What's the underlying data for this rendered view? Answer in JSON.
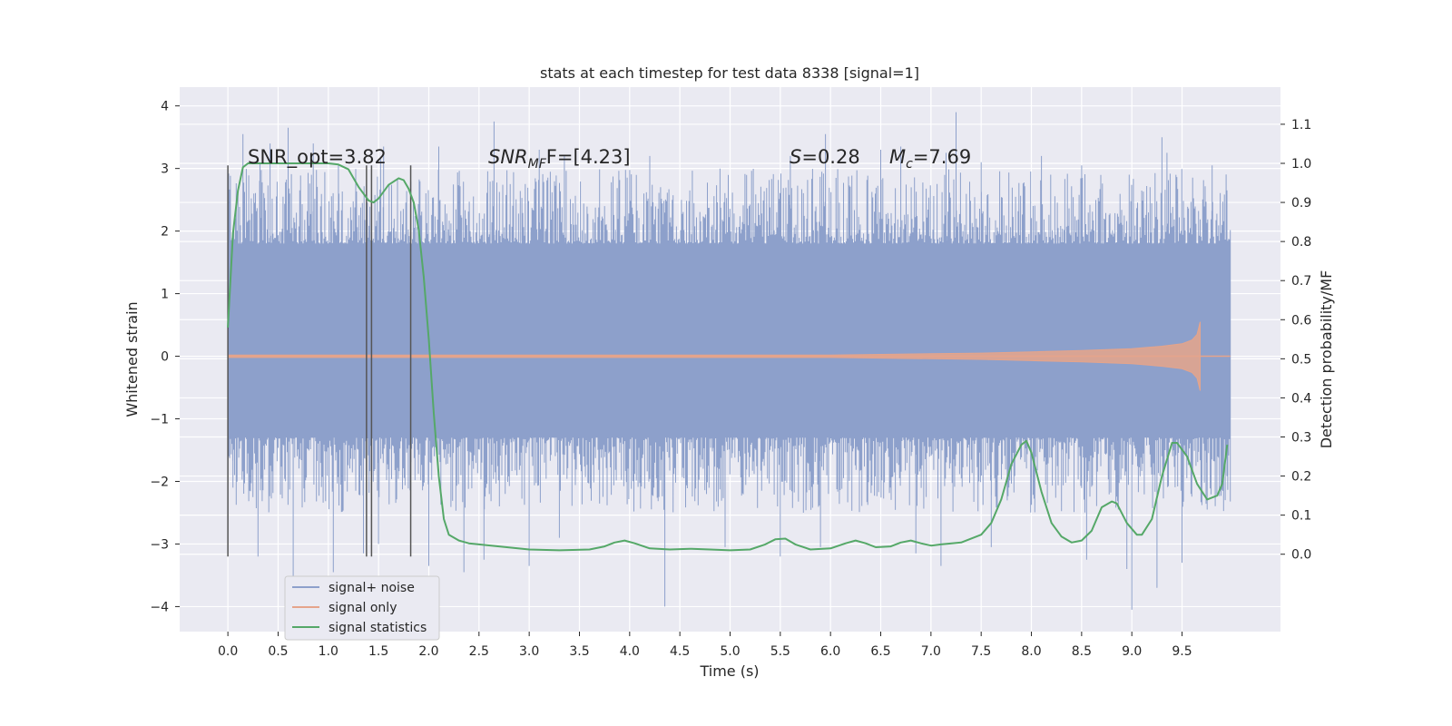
{
  "chart_data": {
    "type": "line",
    "title": "stats at each timestep for test data 8338 [signal=1]",
    "xlabel": "Time (s)",
    "ylabel_left": "Whitened strain",
    "ylabel_right": "Detection probability/MF",
    "xlim": [
      -0.48,
      10.48
    ],
    "ylim_left": [
      -4.4,
      4.3
    ],
    "ylim_right": [
      -0.198,
      1.195
    ],
    "x_ticks": [
      0.0,
      0.5,
      1.0,
      1.5,
      2.0,
      2.5,
      3.0,
      3.5,
      4.0,
      4.5,
      5.0,
      5.5,
      6.0,
      6.5,
      7.0,
      7.5,
      8.0,
      8.5,
      9.0,
      9.5
    ],
    "x_tick_labels": [
      "0.0",
      "0.5",
      "1.0",
      "1.5",
      "2.0",
      "2.5",
      "3.0",
      "3.5",
      "4.0",
      "4.5",
      "5.0",
      "5.5",
      "6.0",
      "6.5",
      "7.0",
      "7.5",
      "8.0",
      "8.5",
      "9.0",
      "9.5"
    ],
    "y_left_ticks": [
      -4,
      -3,
      -2,
      -1,
      0,
      1,
      2,
      3,
      4
    ],
    "y_left_tick_labels": [
      "−4",
      "−3",
      "−2",
      "−1",
      "0",
      "1",
      "2",
      "3",
      "4"
    ],
    "y_right_ticks": [
      0.0,
      0.1,
      0.2,
      0.3,
      0.4,
      0.5,
      0.6,
      0.7,
      0.8,
      0.9,
      1.0,
      1.1
    ],
    "y_right_tick_labels": [
      "0.0",
      "0.1",
      "0.2",
      "0.3",
      "0.4",
      "0.5",
      "0.6",
      "0.7",
      "0.8",
      "0.9",
      "1.0",
      "1.1"
    ],
    "grid": true,
    "legend_position": "lower-left",
    "annotations": {
      "snr_opt": "SNR_opt=3.82",
      "snr_mf_label": "SNR",
      "snr_mf_sub": "MF",
      "snr_mf_value": "F=[4.23]",
      "s_label": "S",
      "s_value": "=0.28",
      "mc_label": "M",
      "mc_sub": "c",
      "mc_value": "=7.69"
    },
    "vertical_lines_x": [
      0.0,
      1.38,
      1.43,
      1.82
    ],
    "vertical_lines_ylim": [
      -3.2,
      3.05
    ],
    "series": [
      {
        "name": "signal+ noise",
        "color": "#8da0cb",
        "axis": "left",
        "x_range": [
          0.0,
          9.98
        ],
        "core_band": [
          -1.3,
          1.8
        ],
        "spike_peaks_upper": [
          [
            0.1,
            2.6
          ],
          [
            0.15,
            3.55
          ],
          [
            0.32,
            3.1
          ],
          [
            0.42,
            3.4
          ],
          [
            0.6,
            3.65
          ],
          [
            0.85,
            3.4
          ],
          [
            1.1,
            3.05
          ],
          [
            1.52,
            3.15
          ],
          [
            1.55,
            3.35
          ],
          [
            2.1,
            3.35
          ],
          [
            2.65,
            3.75
          ],
          [
            3.1,
            3.3
          ],
          [
            3.35,
            3.2
          ],
          [
            4.2,
            3.2
          ],
          [
            4.9,
            3.0
          ],
          [
            5.6,
            3.2
          ],
          [
            5.95,
            3.55
          ],
          [
            6.5,
            3.3
          ],
          [
            6.7,
            3.35
          ],
          [
            7.15,
            3.25
          ],
          [
            7.25,
            3.9
          ],
          [
            7.5,
            3.1
          ],
          [
            8.1,
            3.2
          ],
          [
            8.5,
            3.05
          ],
          [
            9.3,
            3.5
          ],
          [
            9.35,
            3.25
          ],
          [
            9.8,
            3.05
          ]
        ],
        "spike_peaks_lower": [
          [
            0.05,
            -2.1
          ],
          [
            0.3,
            -3.2
          ],
          [
            0.65,
            -3.6
          ],
          [
            1.05,
            -3.45
          ],
          [
            1.35,
            -3.15
          ],
          [
            1.5,
            -3.0
          ],
          [
            2.0,
            -3.35
          ],
          [
            2.35,
            -3.45
          ],
          [
            2.55,
            -3.25
          ],
          [
            3.0,
            -3.35
          ],
          [
            3.3,
            -2.9
          ],
          [
            4.35,
            -4.0
          ],
          [
            4.95,
            -3.05
          ],
          [
            5.5,
            -3.2
          ],
          [
            5.9,
            -3.05
          ],
          [
            6.85,
            -3.15
          ],
          [
            7.1,
            -3.35
          ],
          [
            7.6,
            -3.05
          ],
          [
            8.55,
            -3.25
          ],
          [
            8.95,
            -3.4
          ],
          [
            9.0,
            -4.05
          ],
          [
            9.25,
            -3.7
          ],
          [
            9.5,
            -3.3
          ],
          [
            9.75,
            -2.45
          ]
        ]
      },
      {
        "name": "signal only",
        "color": "#e5a48b",
        "axis": "left",
        "x": [
          0.0,
          1.0,
          2.0,
          3.0,
          4.0,
          5.0,
          6.0,
          6.5,
          7.0,
          7.5,
          8.0,
          8.5,
          9.0,
          9.3,
          9.5,
          9.6,
          9.65,
          9.68
        ],
        "amplitude": [
          0.02,
          0.02,
          0.02,
          0.02,
          0.02,
          0.02,
          0.02,
          0.03,
          0.04,
          0.05,
          0.07,
          0.09,
          0.12,
          0.16,
          0.2,
          0.26,
          0.35,
          0.55
        ]
      },
      {
        "name": "signal statistics",
        "color": "#55a868",
        "axis": "right",
        "x": [
          0.0,
          0.05,
          0.1,
          0.15,
          0.2,
          0.3,
          0.5,
          0.7,
          0.9,
          1.0,
          1.1,
          1.2,
          1.3,
          1.4,
          1.45,
          1.5,
          1.6,
          1.7,
          1.75,
          1.8,
          1.85,
          1.9,
          1.95,
          2.0,
          2.05,
          2.1,
          2.15,
          2.2,
          2.3,
          2.4,
          2.5,
          2.7,
          3.0,
          3.3,
          3.6,
          3.75,
          3.85,
          3.95,
          4.05,
          4.2,
          4.4,
          4.6,
          4.8,
          5.0,
          5.2,
          5.35,
          5.45,
          5.55,
          5.65,
          5.8,
          6.0,
          6.15,
          6.25,
          6.35,
          6.45,
          6.6,
          6.7,
          6.8,
          6.9,
          7.0,
          7.1,
          7.3,
          7.5,
          7.6,
          7.7,
          7.8,
          7.9,
          7.95,
          8.0,
          8.1,
          8.2,
          8.3,
          8.4,
          8.5,
          8.6,
          8.7,
          8.8,
          8.85,
          8.95,
          9.05,
          9.1,
          9.2,
          9.3,
          9.4,
          9.45,
          9.55,
          9.65,
          9.75,
          9.85,
          9.9,
          9.95
        ],
        "values": [
          0.58,
          0.82,
          0.93,
          0.99,
          1.0,
          1.0,
          1.0,
          1.0,
          1.0,
          1.0,
          0.997,
          0.985,
          0.94,
          0.905,
          0.9,
          0.91,
          0.945,
          0.962,
          0.957,
          0.935,
          0.9,
          0.83,
          0.71,
          0.55,
          0.36,
          0.2,
          0.09,
          0.05,
          0.035,
          0.028,
          0.025,
          0.02,
          0.012,
          0.01,
          0.012,
          0.02,
          0.03,
          0.035,
          0.028,
          0.015,
          0.012,
          0.014,
          0.012,
          0.01,
          0.012,
          0.025,
          0.038,
          0.04,
          0.025,
          0.012,
          0.015,
          0.028,
          0.035,
          0.028,
          0.018,
          0.02,
          0.03,
          0.035,
          0.028,
          0.022,
          0.025,
          0.03,
          0.05,
          0.08,
          0.14,
          0.23,
          0.28,
          0.29,
          0.26,
          0.16,
          0.08,
          0.045,
          0.03,
          0.035,
          0.06,
          0.12,
          0.135,
          0.13,
          0.08,
          0.05,
          0.05,
          0.09,
          0.2,
          0.285,
          0.285,
          0.25,
          0.18,
          0.14,
          0.15,
          0.18,
          0.28
        ]
      }
    ]
  }
}
